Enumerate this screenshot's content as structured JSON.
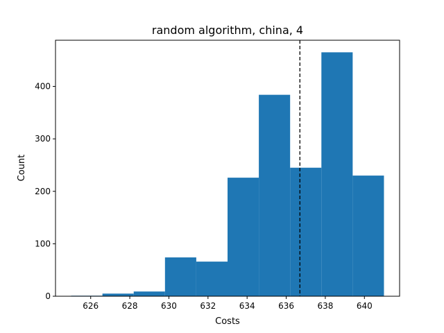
{
  "chart_data": {
    "type": "bar",
    "title": "random algorithm, china, 4",
    "xlabel": "Costs",
    "ylabel": "Count",
    "bin_edges": [
      625.0,
      626.6,
      628.2,
      629.8,
      631.4,
      633.0,
      634.6,
      636.2,
      637.8,
      639.4,
      641.0
    ],
    "values": [
      1,
      5,
      9,
      74,
      66,
      226,
      384,
      245,
      465,
      230
    ],
    "xlim": [
      624.2,
      641.8
    ],
    "ylim": [
      0,
      488
    ],
    "xticks": [
      626,
      628,
      630,
      632,
      634,
      636,
      638,
      640
    ],
    "yticks": [
      0,
      100,
      200,
      300,
      400
    ],
    "mean_line": 636.7,
    "grid": false,
    "bar_color": "#1f77b4",
    "line_color": "#000000"
  }
}
